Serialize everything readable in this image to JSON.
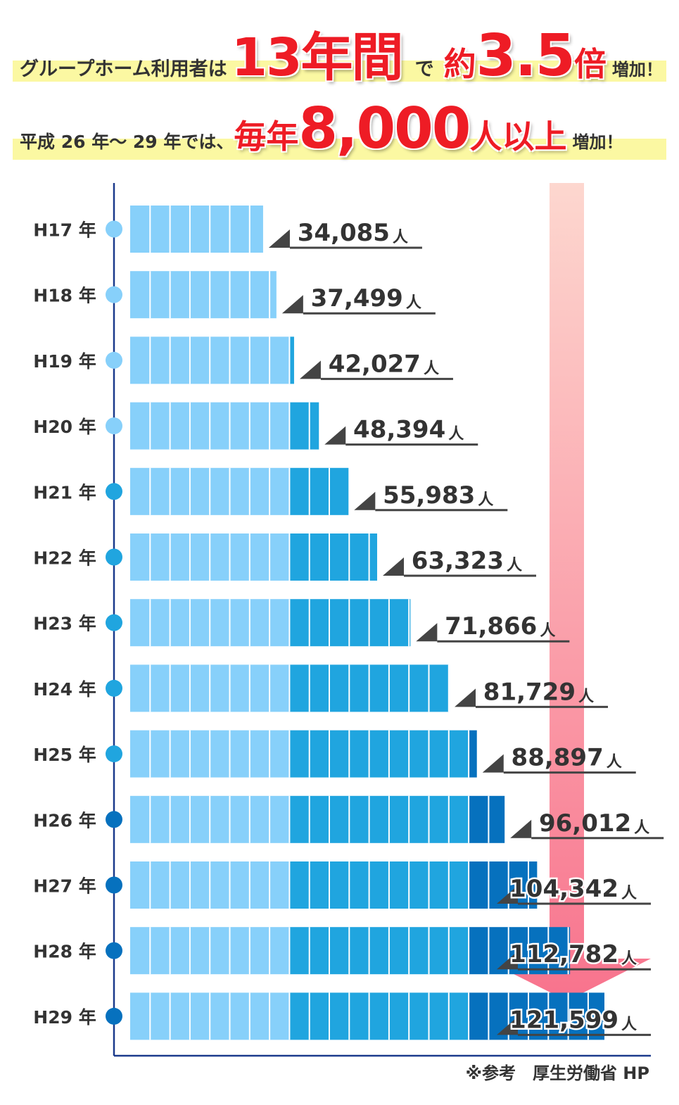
{
  "headline1": {
    "lead": "グループホーム利用者は",
    "years": "13年間",
    "de": "で",
    "approx": "約",
    "multiple": "3.5",
    "times": "倍",
    "increase": "増加！"
  },
  "headline2": {
    "lead": "平成 26 年〜 29 年では、",
    "every_year": "毎年",
    "amount": "8,000",
    "people_over": "人以上",
    "increase": "増加！"
  },
  "chart_data": {
    "type": "bar",
    "orientation": "horizontal",
    "unit": "人",
    "categories": [
      "H17 年",
      "H18 年",
      "H19 年",
      "H20 年",
      "H21 年",
      "H22 年",
      "H23 年",
      "H24 年",
      "H25 年",
      "H26 年",
      "H27 年",
      "H28 年",
      "H29 年"
    ],
    "values": [
      34085,
      37499,
      42027,
      48394,
      55983,
      63323,
      71866,
      81729,
      88897,
      96012,
      104342,
      112782,
      121599
    ],
    "labels": [
      "34,085",
      "37,499",
      "42,027",
      "48,394",
      "55,983",
      "63,323",
      "71,866",
      "81,729",
      "88,897",
      "96,012",
      "104,342",
      "112,782",
      "121,599"
    ],
    "colors": {
      "light": "#87d0fa",
      "mid": "#20a5df",
      "dark": "#0671be",
      "dot_light": "#87d0fa",
      "dot_mid": "#20a5df",
      "dot_dark": "#0671be",
      "axis": "#1b3a8c",
      "arrow_top": "#fdd7cf",
      "arrow_bottom": "#f8738d"
    }
  },
  "footnote": "※参考　厚生労働省 HP"
}
